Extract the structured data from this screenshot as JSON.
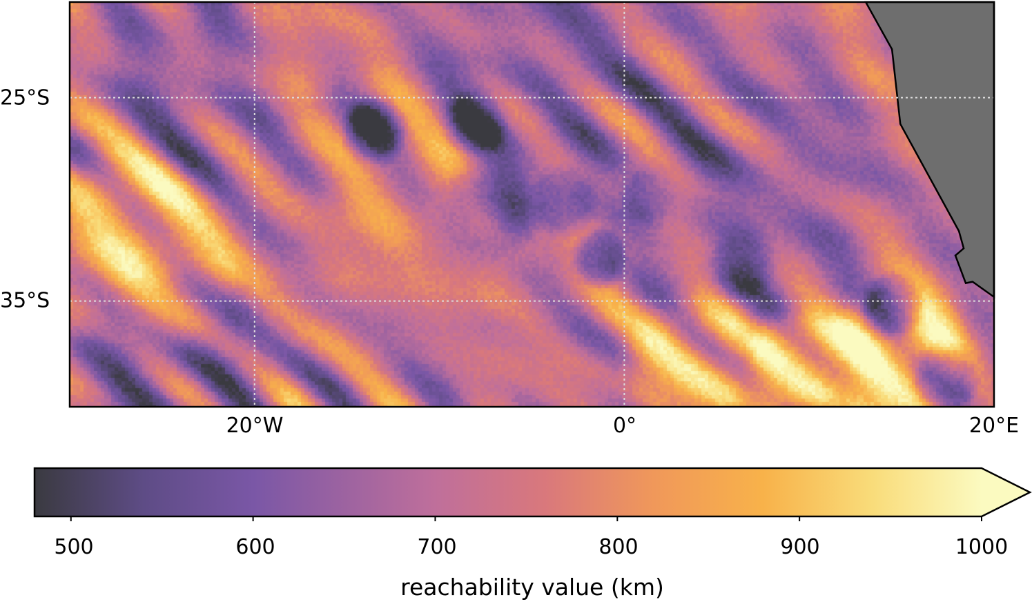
{
  "chart_data": {
    "type": "heatmap",
    "title": "",
    "projection": "PlateCarree",
    "extent": {
      "lon": [
        -30,
        20
      ],
      "lat": [
        -40.2,
        -20.3
      ]
    },
    "x_ticks": [
      {
        "value": -20,
        "label": "20°W"
      },
      {
        "value": 0,
        "label": "0°"
      },
      {
        "value": 20,
        "label": "20°E"
      }
    ],
    "y_ticks": [
      {
        "value": -25,
        "label": "25°S"
      },
      {
        "value": -35,
        "label": "35°S"
      }
    ],
    "grid": true,
    "colorbar": {
      "label": "reachability value (km)",
      "range": [
        480,
        1000
      ],
      "extend": "max",
      "ticks": [
        {
          "value": 500,
          "label": "500"
        },
        {
          "value": 600,
          "label": "600"
        },
        {
          "value": 700,
          "label": "700"
        },
        {
          "value": 800,
          "label": "800"
        },
        {
          "value": 900,
          "label": "900"
        },
        {
          "value": 1000,
          "label": "1000"
        }
      ],
      "colormap": [
        [
          480,
          "#3a3a40"
        ],
        [
          540,
          "#5e4c86"
        ],
        [
          600,
          "#7a57a6"
        ],
        [
          700,
          "#bf6f9b"
        ],
        [
          760,
          "#d9787c"
        ],
        [
          820,
          "#f0985a"
        ],
        [
          880,
          "#f8b24a"
        ],
        [
          940,
          "#f9dc7a"
        ],
        [
          1000,
          "#fbfac0"
        ]
      ]
    },
    "field_features": [
      {
        "lon": -8.0,
        "lat": -26.1,
        "value": 480,
        "radius": 1.3
      },
      {
        "lon": -13.6,
        "lat": -26.6,
        "value": 520,
        "radius": 1.2
      },
      {
        "lon": -7.5,
        "lat": -30.4,
        "value": 490,
        "radius": 1.9
      },
      {
        "lon": -3.4,
        "lat": -29.9,
        "value": 540,
        "radius": 1.3
      },
      {
        "lon": 1.3,
        "lat": -29.7,
        "value": 540,
        "radius": 1.1
      },
      {
        "lon": -1.4,
        "lat": -32.8,
        "value": 480,
        "radius": 1.0
      },
      {
        "lon": 6.3,
        "lat": -33.0,
        "value": 480,
        "radius": 1.3
      },
      {
        "lon": 14.4,
        "lat": -35.2,
        "value": 480,
        "radius": 1.2
      },
      {
        "lon": 17.2,
        "lat": -38.8,
        "value": 500,
        "radius": 1.3
      },
      {
        "lon": 14.7,
        "lat": -37.9,
        "value": 1000,
        "radius": 2.8
      },
      {
        "lon": 9.1,
        "lat": -38.2,
        "value": 980,
        "radius": 2.0
      },
      {
        "lon": 3.5,
        "lat": -38.2,
        "value": 900,
        "radius": 2.5
      },
      {
        "lon": -27.0,
        "lat": -31.4,
        "value": 900,
        "radius": 3.0
      },
      {
        "lon": -24.4,
        "lat": -33.8,
        "value": 900,
        "radius": 2.5
      },
      {
        "lon": -22.6,
        "lat": -22.9,
        "value": 610,
        "radius": 4.0
      },
      {
        "lon": -3.9,
        "lat": -22.9,
        "value": 620,
        "radius": 5.0
      },
      {
        "lon": -24.4,
        "lat": -38.5,
        "value": 600,
        "radius": 4.0
      },
      {
        "lon": 7.3,
        "lat": -28.7,
        "value": 630,
        "radius": 5.0
      },
      {
        "lon": -11.4,
        "lat": -36.2,
        "value": 680,
        "radius": 3.0
      },
      {
        "lon": -11.4,
        "lat": -32.1,
        "value": 800,
        "radius": 4.0
      },
      {
        "lon": -18.8,
        "lat": -22.2,
        "value": 800,
        "radius": 2.5
      }
    ],
    "background_value": 720,
    "land_color": "#6e6e6e",
    "land_polygon": [
      [
        13.06,
        -20.3
      ],
      [
        14.48,
        -22.62
      ],
      [
        14.93,
        -26.29
      ],
      [
        18.1,
        -31.56
      ],
      [
        18.36,
        -32.41
      ],
      [
        17.91,
        -32.76
      ],
      [
        18.47,
        -34.12
      ],
      [
        18.84,
        -34.05
      ],
      [
        20,
        -34.8
      ],
      [
        20,
        -20.3
      ]
    ]
  }
}
